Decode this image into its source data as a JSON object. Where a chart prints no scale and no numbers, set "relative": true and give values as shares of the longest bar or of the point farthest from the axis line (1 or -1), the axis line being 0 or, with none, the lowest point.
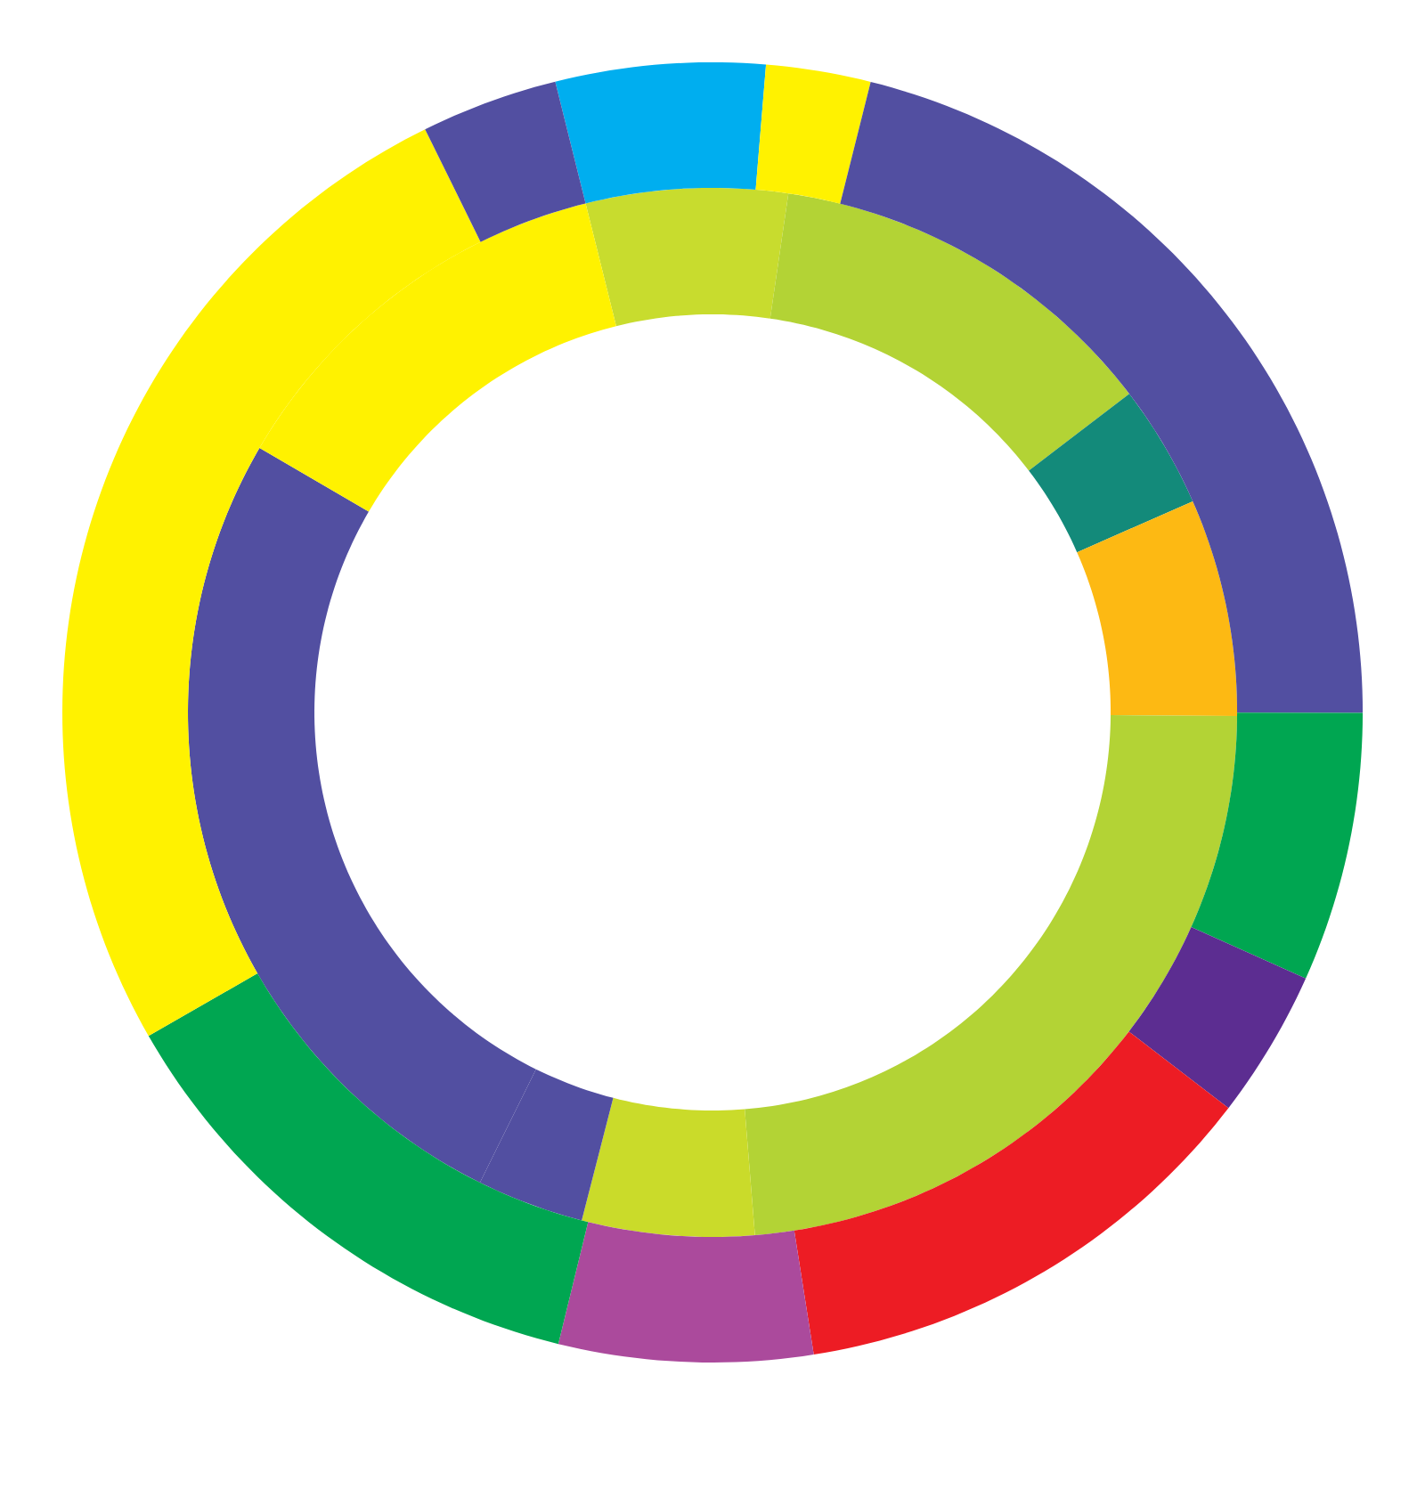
{
  "chart_data": {
    "type": "donut",
    "relative": true,
    "series": [
      {
        "values": [
          6.2,
          12.3,
          3.8,
          6.7,
          23.6,
          5.3,
          3.3,
          26.1,
          12.7
        ],
        "colors": [
          "#c8dc2e",
          "#b3d335",
          "#138a7a",
          "#fdb913",
          "#b3d335",
          "#cadb2a",
          "#524fa1",
          "#524fa1",
          "#fff200"
        ]
      },
      {
        "values": [
          5.2,
          2.6,
          21.1,
          6.7,
          3.7,
          12.1,
          6.3,
          12.9,
          26.0,
          3.4
        ],
        "colors": [
          "#00aeef",
          "#fff200",
          "#524fa1",
          "#00a651",
          "#5c2d91",
          "#ed1c24",
          "#ab4a9c",
          "#00a651",
          "#fff200",
          "#524fa1"
        ]
      }
    ]
  }
}
